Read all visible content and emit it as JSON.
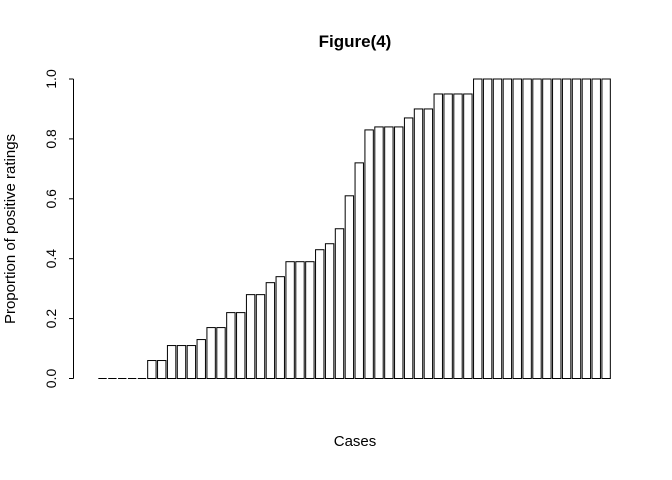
{
  "figure": {
    "background_color": "#ffffff",
    "bar_fill_color": "#ffffff",
    "bar_stroke_color": "#000000",
    "axis_color": "#000000",
    "text_color": "#000000"
  },
  "chart_data": {
    "type": "bar",
    "title": "Figure(4)",
    "xlabel": "Cases",
    "ylabel": "Proportion of positive ratings",
    "ylim": [
      0,
      1
    ],
    "ytick_labels": [
      "0.0",
      "0.2",
      "0.4",
      "0.6",
      "0.8",
      "1.0"
    ],
    "ytick_values": [
      0,
      0.2,
      0.4,
      0.6,
      0.8,
      1.0
    ],
    "grid": "off",
    "legend": "none",
    "bar_order": "sorted ascending",
    "values": [
      0,
      0,
      0,
      0,
      0,
      0.06,
      0.06,
      0.11,
      0.11,
      0.11,
      0.13,
      0.17,
      0.17,
      0.22,
      0.22,
      0.28,
      0.28,
      0.32,
      0.34,
      0.39,
      0.39,
      0.39,
      0.43,
      0.45,
      0.5,
      0.61,
      0.72,
      0.83,
      0.84,
      0.84,
      0.84,
      0.87,
      0.9,
      0.9,
      0.95,
      0.95,
      0.95,
      0.95,
      1,
      1,
      1,
      1,
      1,
      1,
      1,
      1,
      1,
      1,
      1,
      1,
      1,
      1
    ]
  }
}
